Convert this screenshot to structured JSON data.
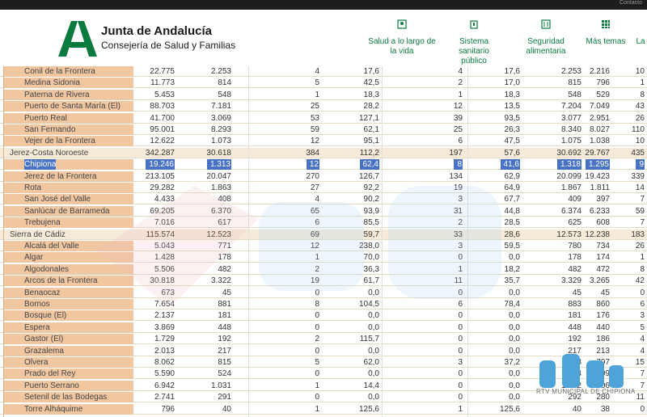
{
  "topbar": {
    "text": "Contacto"
  },
  "brand": {
    "title": "Junta de Andalucía",
    "subtitle": "Consejería de Salud y Familias",
    "color": "#0b7a3e"
  },
  "nav": [
    {
      "label": "Salud a lo largo de la vida",
      "icon": "person-icon"
    },
    {
      "label": "Sistema sanitario público",
      "icon": "hospital-icon"
    },
    {
      "label": "Seguridad alimentaria",
      "icon": "cutlery-icon"
    },
    {
      "label": "Más temas",
      "icon": "grid-icon"
    },
    {
      "label": "La",
      "icon": ""
    }
  ],
  "table": {
    "rows": [
      {
        "name": "Conil de la Frontera",
        "type": "sub",
        "c1": "22.775",
        "c2": "2.253",
        "c3": "4",
        "c4": "17,6",
        "c5": "4",
        "c6": "17,6",
        "c7": "2.253",
        "c8": "2.216",
        "c9": "10"
      },
      {
        "name": "Medina Sidonia",
        "type": "sub",
        "c1": "11.773",
        "c2": "814",
        "c3": "5",
        "c4": "42,5",
        "c5": "2",
        "c6": "17,0",
        "c7": "815",
        "c8": "796",
        "c9": "1"
      },
      {
        "name": "Paterna de Rivera",
        "type": "sub",
        "c1": "5.453",
        "c2": "548",
        "c3": "1",
        "c4": "18,3",
        "c5": "1",
        "c6": "18,3",
        "c7": "548",
        "c8": "529",
        "c9": "8"
      },
      {
        "name": "Puerto de Santa María (El)",
        "type": "sub",
        "c1": "88.703",
        "c2": "7.181",
        "c3": "25",
        "c4": "28,2",
        "c5": "12",
        "c6": "13,5",
        "c7": "7.204",
        "c8": "7.049",
        "c9": "43"
      },
      {
        "name": "Puerto Real",
        "type": "sub",
        "c1": "41.700",
        "c2": "3.069",
        "c3": "53",
        "c4": "127,1",
        "c5": "39",
        "c6": "93,5",
        "c7": "3.077",
        "c8": "2.951",
        "c9": "26"
      },
      {
        "name": "San Fernando",
        "type": "sub",
        "c1": "95.001",
        "c2": "8.293",
        "c3": "59",
        "c4": "62,1",
        "c5": "25",
        "c6": "26,3",
        "c7": "8.340",
        "c8": "8.027",
        "c9": "110"
      },
      {
        "name": "Vejer de la Frontera",
        "type": "sub",
        "c1": "12.622",
        "c2": "1.073",
        "c3": "12",
        "c4": "95,1",
        "c5": "6",
        "c6": "47,5",
        "c7": "1.075",
        "c8": "1.038",
        "c9": "10"
      },
      {
        "name": "Jerez-Costa Noroeste",
        "type": "group",
        "c1": "342.287",
        "c2": "30.618",
        "c3": "384",
        "c4": "112,2",
        "c5": "197",
        "c6": "57,6",
        "c7": "30.692",
        "c8": "29.767",
        "c9": "435"
      },
      {
        "name": "Chipiona",
        "type": "selected",
        "c1": "19.246",
        "c2": "1.313",
        "c3": "12",
        "c4": "62,4",
        "c5": "8",
        "c6": "41,6",
        "c7": "1.318",
        "c8": "1.295",
        "c9": "9"
      },
      {
        "name": "Jerez de la Frontera",
        "type": "sub",
        "c1": "213.105",
        "c2": "20.047",
        "c3": "270",
        "c4": "126,7",
        "c5": "134",
        "c6": "62,9",
        "c7": "20.099",
        "c8": "19.423",
        "c9": "339"
      },
      {
        "name": "Rota",
        "type": "sub",
        "c1": "29.282",
        "c2": "1.863",
        "c3": "27",
        "c4": "92,2",
        "c5": "19",
        "c6": "64,9",
        "c7": "1.867",
        "c8": "1.811",
        "c9": "14"
      },
      {
        "name": "San José del Valle",
        "type": "sub",
        "c1": "4.433",
        "c2": "408",
        "c3": "4",
        "c4": "90,2",
        "c5": "3",
        "c6": "67,7",
        "c7": "409",
        "c8": "397",
        "c9": "7"
      },
      {
        "name": "Sanlúcar de Barrameda",
        "type": "sub",
        "c1": "69.205",
        "c2": "6.370",
        "c3": "65",
        "c4": "93,9",
        "c5": "31",
        "c6": "44,8",
        "c7": "6.374",
        "c8": "6.233",
        "c9": "59"
      },
      {
        "name": "Trebujena",
        "type": "sub",
        "c1": "7.016",
        "c2": "617",
        "c3": "6",
        "c4": "85,5",
        "c5": "2",
        "c6": "28,5",
        "c7": "625",
        "c8": "608",
        "c9": "7"
      },
      {
        "name": "Sierra de Cádiz",
        "type": "group",
        "c1": "115.574",
        "c2": "12.523",
        "c3": "69",
        "c4": "59,7",
        "c5": "33",
        "c6": "28,6",
        "c7": "12.573",
        "c8": "12.238",
        "c9": "183"
      },
      {
        "name": "Alcalá del Valle",
        "type": "sub",
        "c1": "5.043",
        "c2": "771",
        "c3": "12",
        "c4": "238,0",
        "c5": "3",
        "c6": "59,5",
        "c7": "780",
        "c8": "734",
        "c9": "26"
      },
      {
        "name": "Algar",
        "type": "sub",
        "c1": "1.428",
        "c2": "178",
        "c3": "1",
        "c4": "70,0",
        "c5": "0",
        "c6": "0,0",
        "c7": "178",
        "c8": "174",
        "c9": "1"
      },
      {
        "name": "Algodonales",
        "type": "sub",
        "c1": "5.506",
        "c2": "482",
        "c3": "2",
        "c4": "36,3",
        "c5": "1",
        "c6": "18,2",
        "c7": "482",
        "c8": "472",
        "c9": "8"
      },
      {
        "name": "Arcos de la Frontera",
        "type": "sub",
        "c1": "30.818",
        "c2": "3.322",
        "c3": "19",
        "c4": "61,7",
        "c5": "11",
        "c6": "35,7",
        "c7": "3.329",
        "c8": "3.265",
        "c9": "42"
      },
      {
        "name": "Benaocaz",
        "type": "sub",
        "c1": "673",
        "c2": "45",
        "c3": "0",
        "c4": "0,0",
        "c5": "0",
        "c6": "0,0",
        "c7": "45",
        "c8": "45",
        "c9": "0"
      },
      {
        "name": "Bornos",
        "type": "sub",
        "c1": "7.654",
        "c2": "881",
        "c3": "8",
        "c4": "104,5",
        "c5": "6",
        "c6": "78,4",
        "c7": "883",
        "c8": "860",
        "c9": "6"
      },
      {
        "name": "Bosque (El)",
        "type": "sub",
        "c1": "2.137",
        "c2": "181",
        "c3": "0",
        "c4": "0,0",
        "c5": "0",
        "c6": "0,0",
        "c7": "181",
        "c8": "176",
        "c9": "3"
      },
      {
        "name": "Espera",
        "type": "sub",
        "c1": "3.869",
        "c2": "448",
        "c3": "0",
        "c4": "0,0",
        "c5": "0",
        "c6": "0,0",
        "c7": "448",
        "c8": "440",
        "c9": "5"
      },
      {
        "name": "Gastor (El)",
        "type": "sub",
        "c1": "1.729",
        "c2": "192",
        "c3": "2",
        "c4": "115,7",
        "c5": "0",
        "c6": "0,0",
        "c7": "192",
        "c8": "186",
        "c9": "4"
      },
      {
        "name": "Grazalema",
        "type": "sub",
        "c1": "2.013",
        "c2": "217",
        "c3": "0",
        "c4": "0,0",
        "c5": "0",
        "c6": "0,0",
        "c7": "217",
        "c8": "213",
        "c9": "4"
      },
      {
        "name": "Olvera",
        "type": "sub",
        "c1": "8.062",
        "c2": "815",
        "c3": "5",
        "c4": "62,0",
        "c5": "3",
        "c6": "37,2",
        "c7": "818",
        "c8": "797",
        "c9": "15"
      },
      {
        "name": "Prado del Rey",
        "type": "sub",
        "c1": "5.590",
        "c2": "524",
        "c3": "0",
        "c4": "0,0",
        "c5": "0",
        "c6": "0,0",
        "c7": "524",
        "c8": "509",
        "c9": "7"
      },
      {
        "name": "Puerto Serrano",
        "type": "sub",
        "c1": "6.942",
        "c2": "1.031",
        "c3": "1",
        "c4": "14,4",
        "c5": "0",
        "c6": "0,0",
        "c7": "1.032",
        "c8": "1.006",
        "c9": "7"
      },
      {
        "name": "Setenil de las Bodegas",
        "type": "sub",
        "c1": "2.741",
        "c2": "291",
        "c3": "0",
        "c4": "0,0",
        "c5": "0",
        "c6": "0,0",
        "c7": "292",
        "c8": "280",
        "c9": "11"
      },
      {
        "name": "Torre Alháquime",
        "type": "sub",
        "c1": "796",
        "c2": "40",
        "c3": "1",
        "c4": "125,6",
        "c5": "1",
        "c6": "125,6",
        "c7": "40",
        "c8": "38",
        "c9": "0"
      }
    ]
  },
  "watermark": {
    "text": "RTV MUNICIPAL DE CHIPIONA",
    "logo": "rtv-logo-icon"
  }
}
